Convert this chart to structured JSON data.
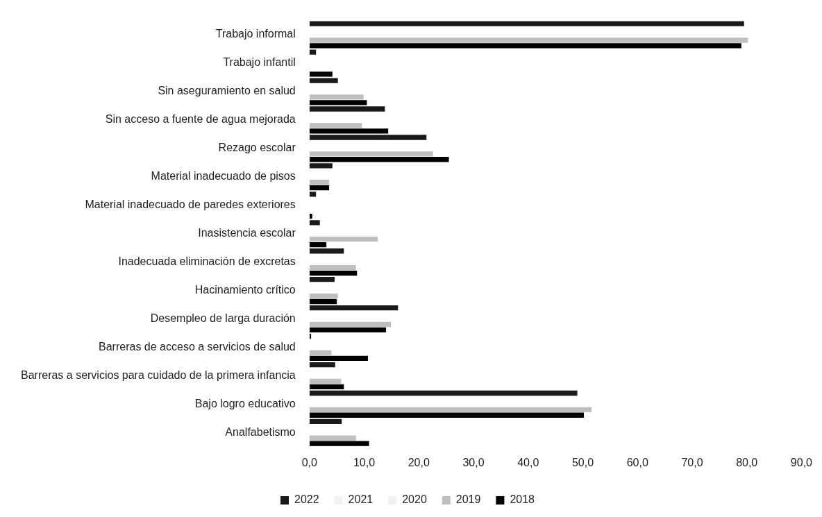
{
  "chart_data": {
    "type": "bar",
    "orientation": "horizontal",
    "categories": [
      "Trabajo informal",
      "Trabajo infantil",
      "Sin aseguramiento en salud",
      "Sin acceso a fuente de agua mejorada",
      "Rezago escolar",
      "Material inadecuado de pisos",
      "Material inadecuado de paredes exteriores",
      "Inasistencia escolar",
      "Inadecuada eliminación de excretas",
      "Hacinamiento crítico",
      "Desempleo de larga duración",
      "Barreras de acceso a servicios de salud",
      "Barreras a servicios para cuidado de la primera infancia",
      "Bajo logro educativo",
      "Analfabetismo"
    ],
    "series": [
      {
        "name": "2022",
        "color": "#1a1a1a",
        "values": [
          79.5,
          1.2,
          5.2,
          13.8,
          21.4,
          4.2,
          1.2,
          1.9,
          6.3,
          4.6,
          16.2,
          0.3,
          4.7,
          49.0,
          5.9
        ]
      },
      {
        "name": "2021",
        "color": "#f2f2f2",
        "values": [
          null,
          null,
          null,
          null,
          null,
          null,
          null,
          null,
          null,
          null,
          null,
          null,
          null,
          null,
          null
        ]
      },
      {
        "name": "2020",
        "color": "#f2f2f2",
        "values": [
          null,
          null,
          null,
          null,
          null,
          null,
          null,
          null,
          null,
          null,
          null,
          null,
          null,
          null,
          null
        ]
      },
      {
        "name": "2019",
        "color": "#bfbfbf",
        "values": [
          80.2,
          null,
          9.9,
          9.6,
          22.6,
          3.6,
          null,
          12.5,
          8.5,
          5.2,
          14.9,
          4.0,
          5.8,
          51.6,
          8.5
        ]
      },
      {
        "name": "2018",
        "color": "#000000",
        "values": [
          79.0,
          4.2,
          10.5,
          14.4,
          25.5,
          3.6,
          0.5,
          3.1,
          8.7,
          5.0,
          14.0,
          10.7,
          6.3,
          50.2,
          10.9
        ]
      }
    ],
    "xlim": [
      0,
      90
    ],
    "xticks": [
      {
        "value": 0,
        "label": "0,0"
      },
      {
        "value": 10,
        "label": "10,0"
      },
      {
        "value": 20,
        "label": "20,0"
      },
      {
        "value": 30,
        "label": "30,0"
      },
      {
        "value": 40,
        "label": "40,0"
      },
      {
        "value": 50,
        "label": "50,0"
      },
      {
        "value": 60,
        "label": "60,0"
      },
      {
        "value": 70,
        "label": "70,0"
      },
      {
        "value": 80,
        "label": "80,0"
      },
      {
        "value": 90,
        "label": "90,0"
      }
    ],
    "grid": false,
    "legend": "bottom"
  }
}
